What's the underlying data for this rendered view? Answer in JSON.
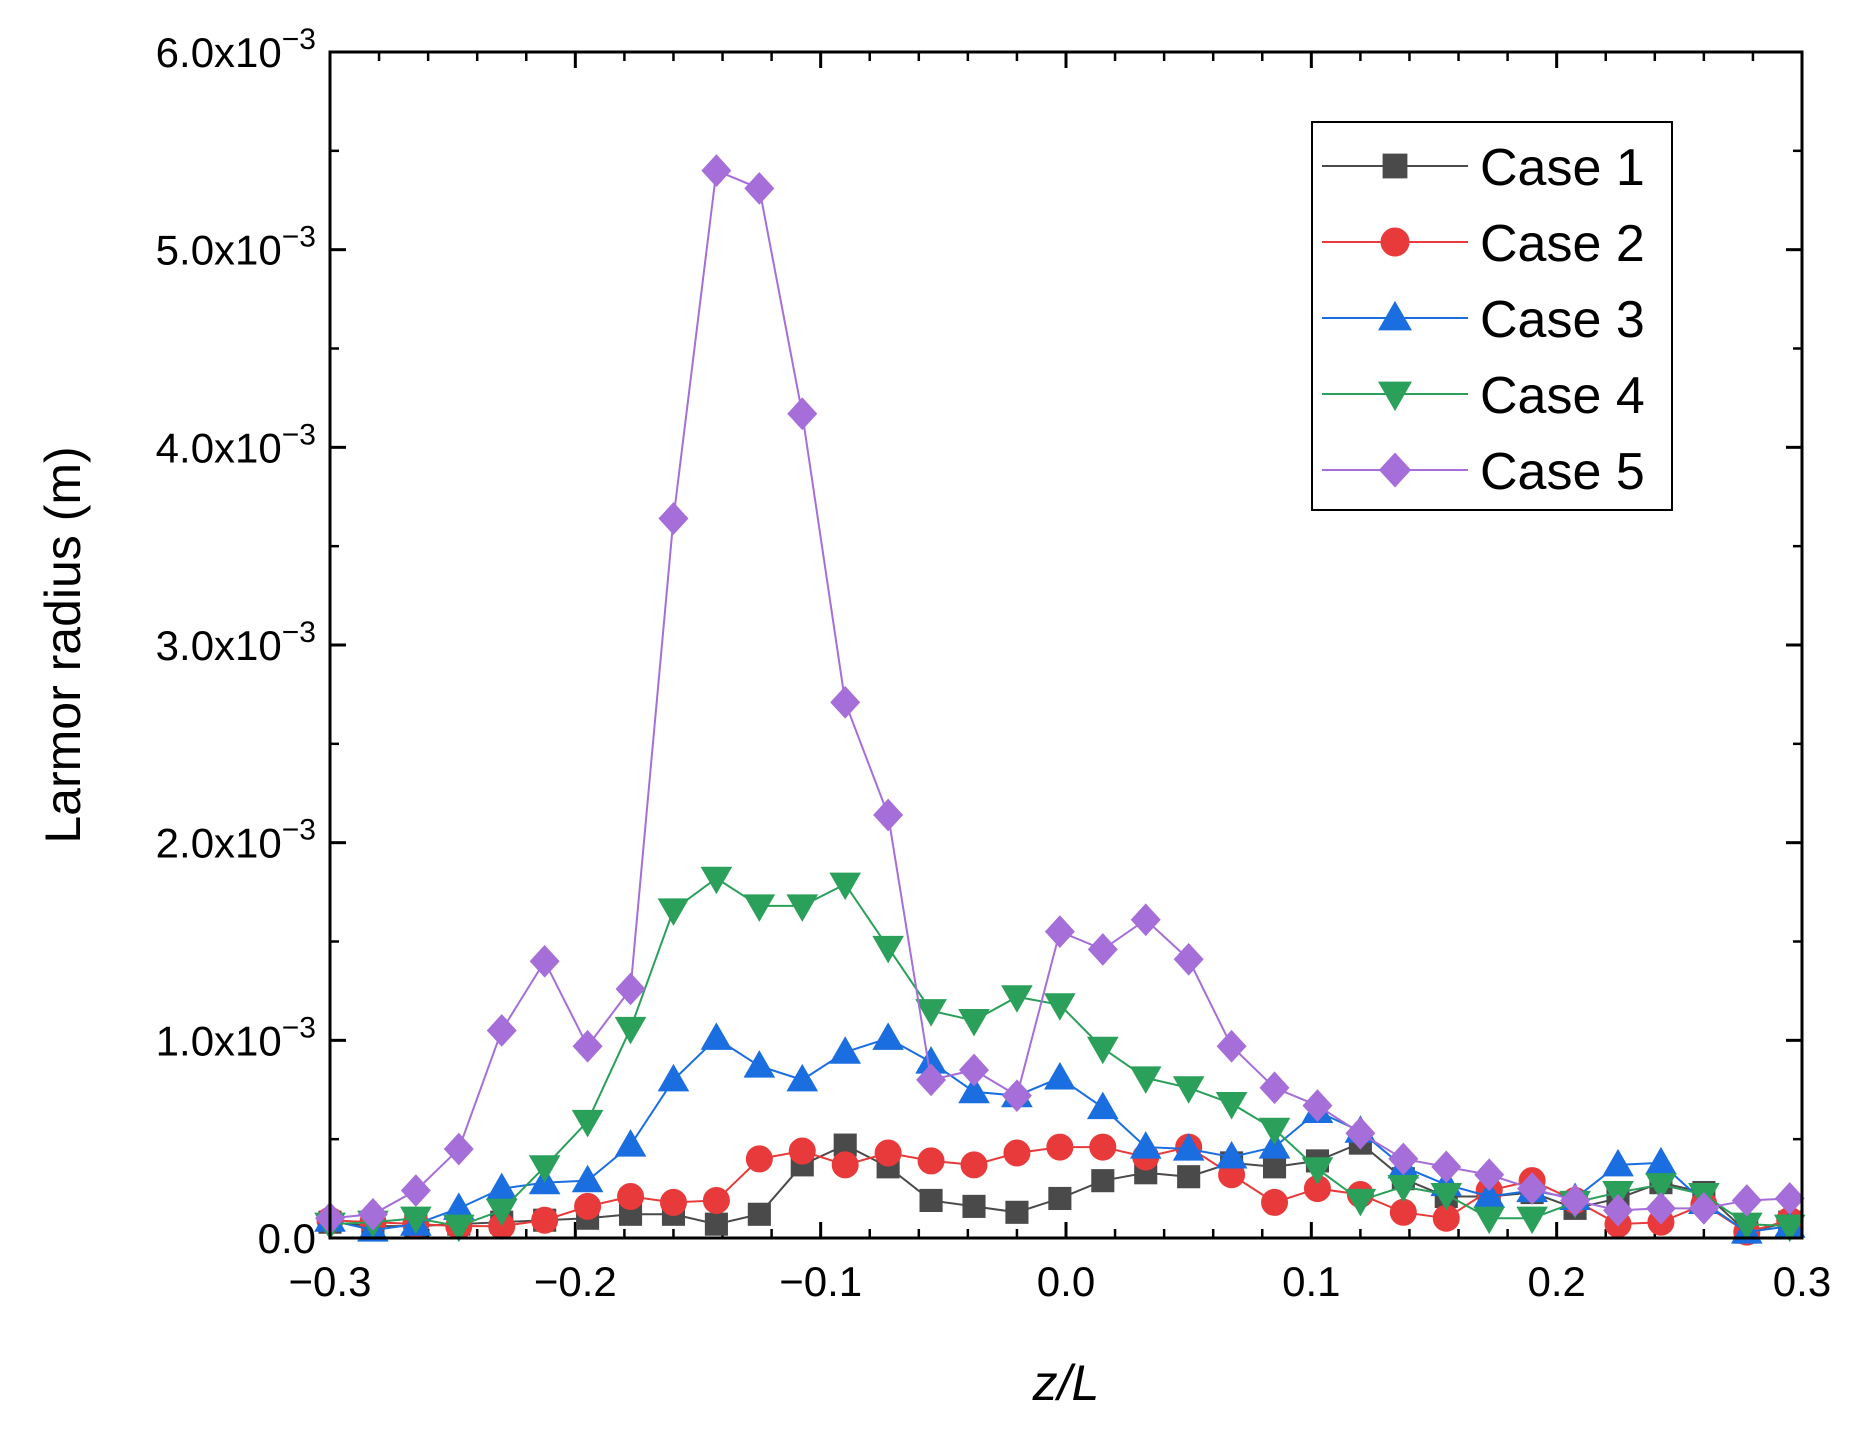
{
  "chart_data": {
    "type": "line",
    "title": "",
    "xlabel": "z/L",
    "ylabel": "Larmor radius (m)",
    "xlim": [
      -0.3,
      0.3
    ],
    "ylim": [
      0,
      0.006
    ],
    "x_ticks": [
      -0.3,
      -0.2,
      -0.1,
      0.0,
      0.1,
      0.2,
      0.3
    ],
    "x_tick_labels": [
      "−0.3",
      "−0.2",
      "−0.1",
      "0.0",
      "0.1",
      "0.2",
      "0.3"
    ],
    "y_ticks": [
      0,
      0.001,
      0.002,
      0.003,
      0.004,
      0.005,
      0.006
    ],
    "y_tick_labels": [
      {
        "mantissa": "0.0",
        "exponent": ""
      },
      {
        "mantissa": "1.0x10",
        "exponent": "−3"
      },
      {
        "mantissa": "2.0x10",
        "exponent": "−3"
      },
      {
        "mantissa": "3.0x10",
        "exponent": "−3"
      },
      {
        "mantissa": "4.0x10",
        "exponent": "−3"
      },
      {
        "mantissa": "5.0x10",
        "exponent": "−3"
      },
      {
        "mantissa": "6.0x10",
        "exponent": "−3"
      }
    ],
    "legend_position": "top-right",
    "x": [
      -0.3,
      -0.2825,
      -0.265,
      -0.2475,
      -0.23,
      -0.2125,
      -0.195,
      -0.1775,
      -0.16,
      -0.1425,
      -0.125,
      -0.1075,
      -0.09,
      -0.0725,
      -0.055,
      -0.0375,
      -0.02,
      -0.0025,
      0.015,
      0.0325,
      0.05,
      0.0675,
      0.085,
      0.1025,
      0.12,
      0.1375,
      0.155,
      0.1725,
      0.19,
      0.2075,
      0.225,
      0.2425,
      0.26,
      0.2775,
      0.295
    ],
    "series": [
      {
        "name": "Case 1",
        "color": "#4a4a4a",
        "marker": "square",
        "values": [
          8e-05,
          6e-05,
          6e-05,
          7e-05,
          8e-05,
          9e-05,
          0.0001,
          0.00012,
          0.00012,
          7e-05,
          0.00012,
          0.00037,
          0.00047,
          0.00036,
          0.00019,
          0.00016,
          0.00013,
          0.0002,
          0.00029,
          0.00033,
          0.00031,
          0.00038,
          0.00036,
          0.00039,
          0.00048,
          0.0003,
          0.00021,
          0.00021,
          0.00023,
          0.00015,
          0.0002,
          0.00028,
          0.00023,
          3e-05,
          8e-05
        ]
      },
      {
        "name": "Case 2",
        "color": "#e83a3a",
        "marker": "circle",
        "values": [
          9e-05,
          8e-05,
          7e-05,
          6e-05,
          6e-05,
          9e-05,
          0.00016,
          0.00021,
          0.00018,
          0.00019,
          0.0004,
          0.00044,
          0.00037,
          0.00043,
          0.00039,
          0.00037,
          0.00043,
          0.00046,
          0.00046,
          0.00041,
          0.00046,
          0.00032,
          0.00018,
          0.00025,
          0.00022,
          0.00013,
          0.0001,
          0.00024,
          0.00029,
          0.00019,
          7e-05,
          8e-05,
          0.00017,
          3e-05,
          9e-05
        ]
      },
      {
        "name": "Case 3",
        "color": "#1a6ee0",
        "marker": "triangle-up",
        "values": [
          9e-05,
          4e-05,
          7e-05,
          0.00015,
          0.00025,
          0.00028,
          0.00029,
          0.00047,
          0.0008,
          0.00101,
          0.00087,
          0.0008,
          0.00094,
          0.00101,
          0.00089,
          0.00074,
          0.00072,
          0.00081,
          0.00066,
          0.00046,
          0.00045,
          0.00041,
          0.00046,
          0.00064,
          0.00054,
          0.00036,
          0.00027,
          0.00021,
          0.00024,
          0.0002,
          0.00037,
          0.00038,
          0.00018,
          3e-05,
          6e-05
        ]
      },
      {
        "name": "Case 4",
        "color": "#2aa05a",
        "marker": "triangle-down",
        "values": [
          7e-05,
          8e-05,
          0.0001,
          6e-05,
          0.00014,
          0.00036,
          0.00059,
          0.00106,
          0.00166,
          0.00182,
          0.00168,
          0.00168,
          0.00179,
          0.00147,
          0.00115,
          0.0011,
          0.00122,
          0.00118,
          0.00096,
          0.00081,
          0.00076,
          0.00068,
          0.00055,
          0.00035,
          0.00019,
          0.00026,
          0.00022,
          0.0001,
          0.0001,
          0.00018,
          0.00023,
          0.00027,
          0.00022,
          7e-05,
          6e-05
        ]
      },
      {
        "name": "Case 5",
        "color": "#a56ed8",
        "marker": "diamond",
        "values": [
          0.0001,
          0.00012,
          0.00024,
          0.00045,
          0.00105,
          0.0014,
          0.00097,
          0.00126,
          0.00364,
          0.0054,
          0.00531,
          0.00417,
          0.00271,
          0.00214,
          0.0008,
          0.00085,
          0.00072,
          0.00155,
          0.00146,
          0.00161,
          0.00141,
          0.00097,
          0.00076,
          0.00067,
          0.00053,
          0.0004,
          0.00036,
          0.00032,
          0.00025,
          0.00019,
          0.00014,
          0.00015,
          0.00015,
          0.00019,
          0.0002
        ]
      }
    ]
  }
}
